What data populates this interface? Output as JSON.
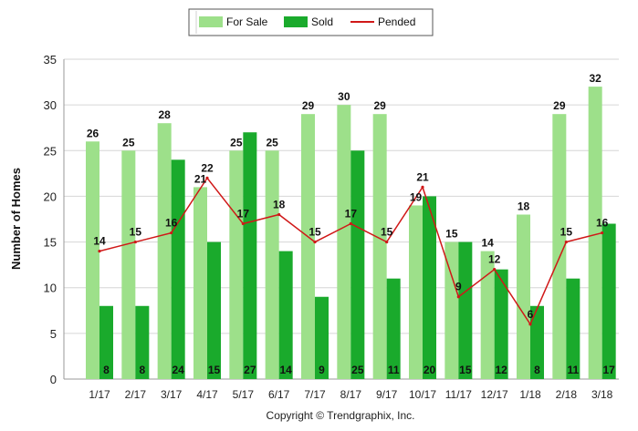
{
  "chart_data": {
    "type": "bar",
    "categories": [
      "1/17",
      "2/17",
      "3/17",
      "4/17",
      "5/17",
      "6/17",
      "7/17",
      "8/17",
      "9/17",
      "10/17",
      "11/17",
      "12/17",
      "1/18",
      "2/18",
      "3/18"
    ],
    "series": [
      {
        "name": "For Sale",
        "kind": "bar",
        "color": "#9de08a",
        "values": [
          26,
          25,
          28,
          21,
          25,
          25,
          29,
          30,
          29,
          19,
          15,
          14,
          18,
          29,
          32
        ]
      },
      {
        "name": "Sold",
        "kind": "bar",
        "color": "#1aaa2c",
        "values": [
          8,
          8,
          24,
          15,
          27,
          14,
          9,
          25,
          11,
          20,
          15,
          12,
          8,
          11,
          17
        ]
      },
      {
        "name": "Pended",
        "kind": "line",
        "color": "#d01818",
        "values": [
          14,
          15,
          16,
          22,
          17,
          18,
          15,
          17,
          15,
          21,
          9,
          12,
          6,
          15,
          16
        ]
      }
    ],
    "ylabel": "Number of Homes",
    "xlabel": "",
    "ylim": [
      0,
      35
    ],
    "yticks": [
      0,
      5,
      10,
      15,
      20,
      25,
      30,
      35
    ],
    "grid": true,
    "legend_position": "top-center",
    "footer": "Copyright © Trendgraphix, Inc."
  }
}
